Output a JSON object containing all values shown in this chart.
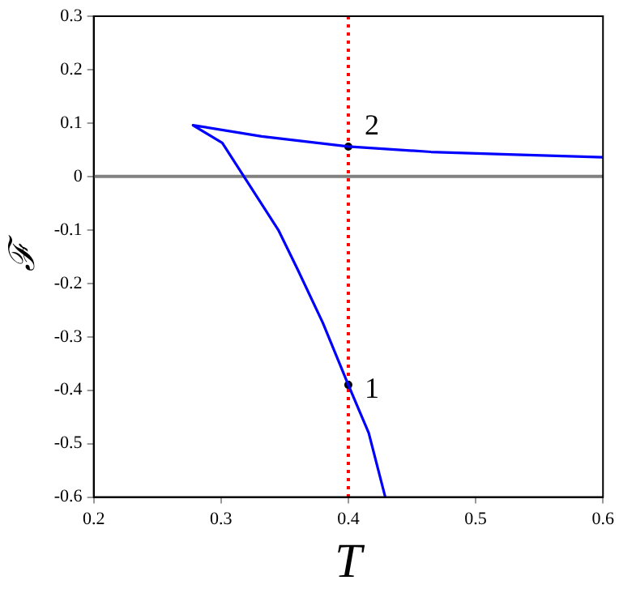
{
  "chart_data": {
    "type": "line",
    "xlabel": "T",
    "ylabel": "ℱ",
    "xlim": [
      0.2,
      0.6
    ],
    "ylim": [
      -0.6,
      0.3
    ],
    "xticks": [
      0.2,
      0.3,
      0.4,
      0.5,
      0.6
    ],
    "yticks": [
      -0.6,
      -0.5,
      -0.4,
      -0.3,
      -0.2,
      -0.1,
      0,
      0.1,
      0.2,
      0.3
    ],
    "grid": false,
    "legend": false,
    "series": [
      {
        "type": "line",
        "color": "#0000ff",
        "marker": "none",
        "line_style": "solid",
        "x": [
          0.6,
          0.531,
          0.465,
          0.4,
          0.332,
          0.278,
          0.301,
          0.318,
          0.345,
          0.36,
          0.38,
          0.4,
          0.416,
          0.429
        ],
        "values": [
          0.036,
          0.041,
          0.046,
          0.056,
          0.075,
          0.096,
          0.063,
          0,
          -0.1,
          -0.173,
          -0.274,
          -0.39,
          -0.48,
          -0.6
        ]
      },
      {
        "type": "scatter",
        "color": "#000000",
        "marker": "circle",
        "x": [
          0.4,
          0.4
        ],
        "values": [
          -0.39,
          0.056
        ]
      }
    ],
    "ref_lines": [
      {
        "axis": "x",
        "value": 0.4,
        "color": "#ff0000",
        "line_style": "dotted"
      },
      {
        "axis": "y",
        "value": 0,
        "color": "#808080",
        "line_style": "solid"
      }
    ],
    "annotations": [
      {
        "text": "1",
        "x": 0.4,
        "y": -0.39
      },
      {
        "text": "2",
        "x": 0.4,
        "y": 0.056
      }
    ]
  }
}
